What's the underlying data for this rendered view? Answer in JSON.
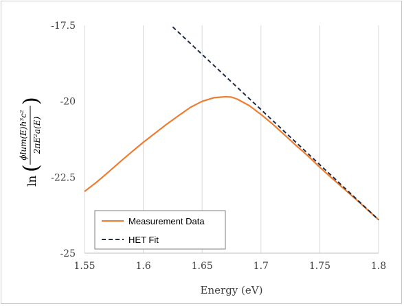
{
  "chart_data": {
    "type": "line",
    "xlabel": "Energy (eV)",
    "xlim": [
      1.55,
      1.8
    ],
    "ylim": [
      -25,
      -17.5
    ],
    "x_ticks": [
      {
        "value": 1.55,
        "label": "1.55"
      },
      {
        "value": 1.6,
        "label": "1.6"
      },
      {
        "value": 1.65,
        "label": "1.65"
      },
      {
        "value": 1.7,
        "label": "1.7"
      },
      {
        "value": 1.75,
        "label": "1.75"
      },
      {
        "value": 1.8,
        "label": "1.8"
      }
    ],
    "y_ticks": [
      {
        "value": -17.5,
        "label": "-17.5"
      },
      {
        "value": -20,
        "label": "-20"
      },
      {
        "value": -22.5,
        "label": "-22.5"
      },
      {
        "value": -25,
        "label": "-25"
      }
    ],
    "grid": {
      "vertical": true,
      "horizontal": false
    },
    "legend_position": "bottom-left",
    "series": [
      {
        "name": "Measurement Data",
        "style": "solid",
        "color": "#ED7D31",
        "x": [
          1.55,
          1.56,
          1.57,
          1.58,
          1.59,
          1.6,
          1.61,
          1.62,
          1.63,
          1.64,
          1.65,
          1.66,
          1.67,
          1.675,
          1.68,
          1.69,
          1.7,
          1.71,
          1.72,
          1.73,
          1.74,
          1.75,
          1.76,
          1.77,
          1.78,
          1.79,
          1.8
        ],
        "y": [
          -22.97,
          -22.67,
          -22.34,
          -22.0,
          -21.67,
          -21.35,
          -21.05,
          -20.75,
          -20.47,
          -20.2,
          -20.0,
          -19.88,
          -19.85,
          -19.86,
          -19.93,
          -20.14,
          -20.43,
          -20.75,
          -21.1,
          -21.46,
          -21.8,
          -22.17,
          -22.52,
          -22.86,
          -23.2,
          -23.55,
          -23.9
        ]
      },
      {
        "name": "HET Fit",
        "style": "dashed",
        "color": "#1F2A44",
        "x": [
          1.625,
          1.8
        ],
        "y": [
          -17.55,
          -23.9
        ]
      }
    ]
  },
  "ylabel": {
    "prefix": "ln",
    "numerator": "ϕlum(E)h³c²",
    "denominator": "2πE²a(E)"
  }
}
